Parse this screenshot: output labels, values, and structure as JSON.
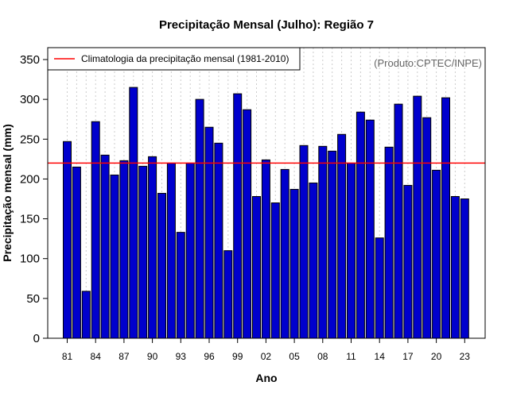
{
  "chart_data": {
    "type": "bar",
    "title": "Precipitação Mensal (Julho): Região 7",
    "xlabel": "Ano",
    "ylabel": "Precipitação mensal (mm)",
    "ylim": [
      0,
      350
    ],
    "yticks": [
      0,
      50,
      100,
      150,
      200,
      250,
      300,
      350
    ],
    "years": [
      "1981",
      "1982",
      "1983",
      "1984",
      "1985",
      "1986",
      "1987",
      "1988",
      "1989",
      "1990",
      "1991",
      "1992",
      "1993",
      "1994",
      "1995",
      "1996",
      "1997",
      "1998",
      "1999",
      "2000",
      "2001",
      "2002",
      "2003",
      "2004",
      "2005",
      "2006",
      "2007",
      "2008",
      "2009",
      "2010",
      "2011",
      "2012",
      "2013",
      "2014",
      "2015",
      "2016",
      "2017",
      "2018",
      "2019",
      "2020",
      "2021",
      "2022",
      "2023"
    ],
    "values": [
      247,
      215,
      59,
      272,
      230,
      205,
      223,
      315,
      216,
      228,
      182,
      220,
      133,
      220,
      300,
      265,
      245,
      110,
      307,
      287,
      178,
      224,
      170,
      212,
      187,
      242,
      195,
      241,
      235,
      256,
      220,
      284,
      274,
      126,
      240,
      294,
      192,
      304,
      277,
      211,
      302,
      178,
      175
    ],
    "xtick_labels": [
      "81",
      "84",
      "87",
      "90",
      "93",
      "96",
      "99",
      "02",
      "05",
      "08",
      "11",
      "14",
      "17",
      "20",
      "23"
    ],
    "xtick_indices": [
      0,
      3,
      6,
      9,
      12,
      15,
      18,
      21,
      24,
      27,
      30,
      33,
      36,
      39,
      42
    ],
    "climatology": {
      "label": "Climatologia da precipitação mensal (1981-2010)",
      "value": 220
    },
    "legend_position": "top-left",
    "grid": "vertical dotted",
    "credit": "(Produto:CPTEC/INPE)",
    "colors": {
      "bar_fill": "#0000cd",
      "bar_stroke": "#000000",
      "climatology_line": "#ff0000",
      "grid": "#cccccc",
      "credit_text": "#666666"
    }
  }
}
